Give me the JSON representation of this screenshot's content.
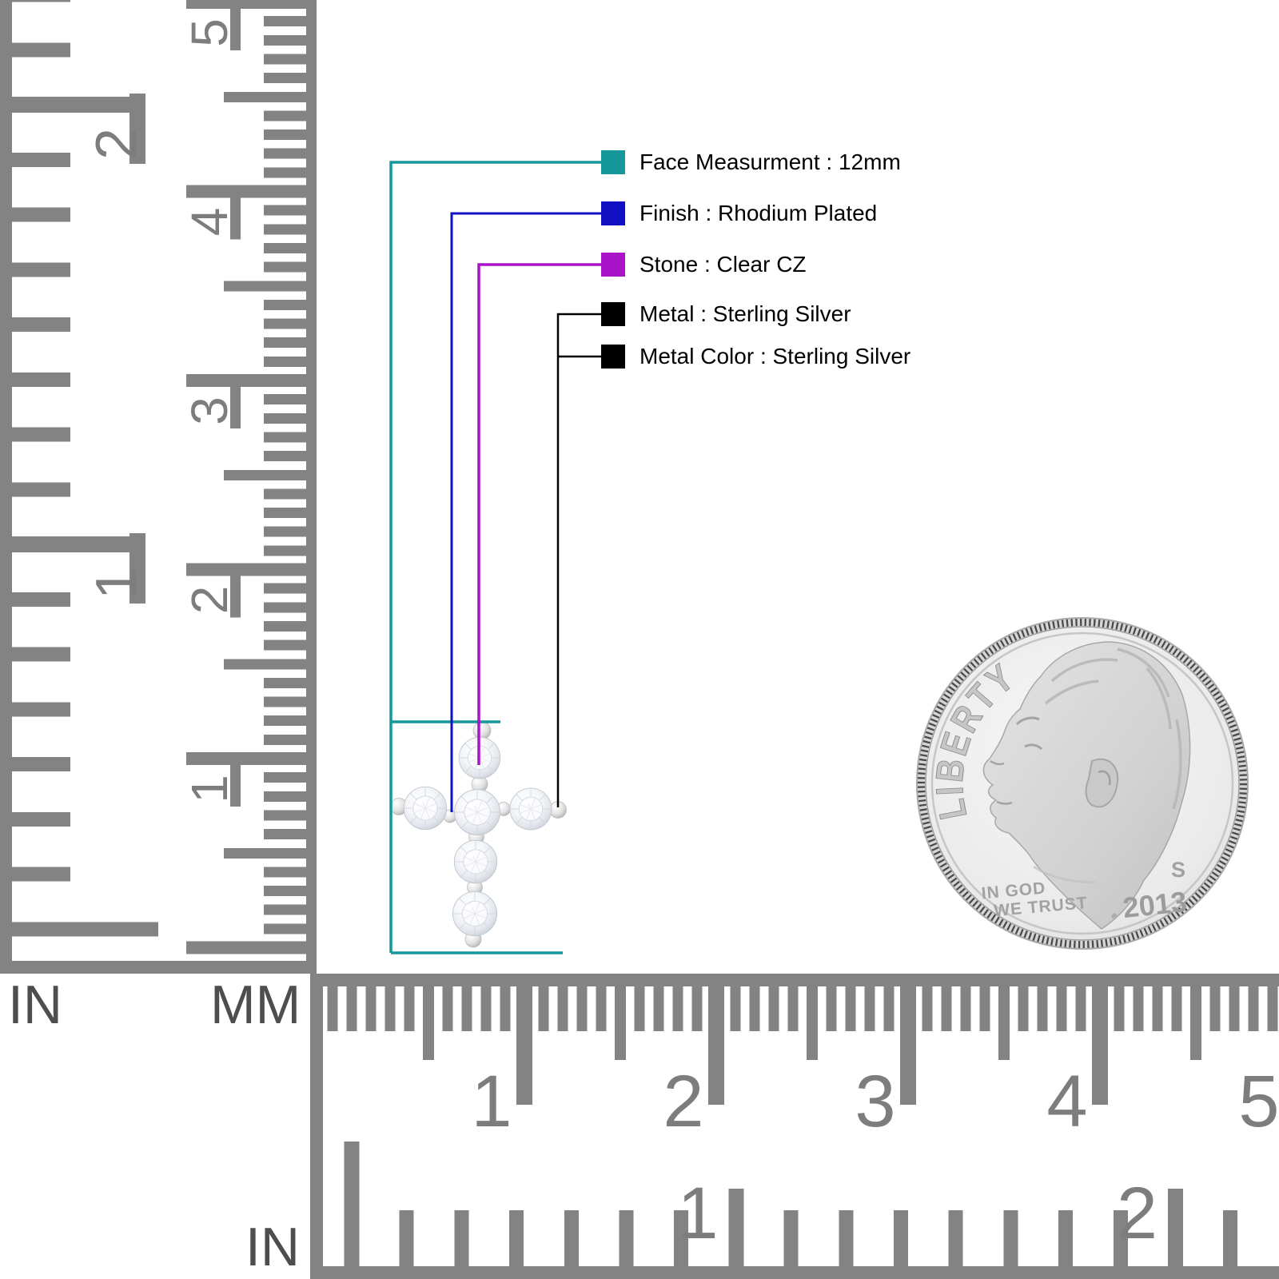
{
  "page": {
    "background": "#ffffff",
    "ruler_gray": "#838383"
  },
  "callouts": {
    "items": [
      {
        "name": "face-measurement",
        "label": "Face Measurment : 12mm",
        "color": "#16989b"
      },
      {
        "name": "finish",
        "label": "Finish : Rhodium Plated",
        "color": "#1111c3"
      },
      {
        "name": "stone",
        "label": "Stone : Clear CZ",
        "color": "#aa14c8"
      },
      {
        "name": "metal",
        "label": "Metal : Sterling Silver",
        "color": "#000000"
      },
      {
        "name": "metal-color",
        "label": "Metal Color : Sterling Silver",
        "color": "#000000"
      }
    ]
  },
  "rulers": {
    "vertical": {
      "in_label": "IN",
      "mm_label": "MM",
      "in_numbers": [
        "2",
        "1"
      ],
      "mm_numbers": [
        "5",
        "4",
        "3",
        "2",
        "1"
      ]
    },
    "horizontal": {
      "in_label": "IN",
      "mm_numbers": [
        "1",
        "2",
        "3",
        "4",
        "5"
      ],
      "in_numbers": [
        "1",
        "2"
      ]
    }
  },
  "coin": {
    "legend": "LIBERTY",
    "motto_line1": "IN GOD",
    "motto_line2": "WE TRUST",
    "year": "2013",
    "mint_mark": "S"
  }
}
